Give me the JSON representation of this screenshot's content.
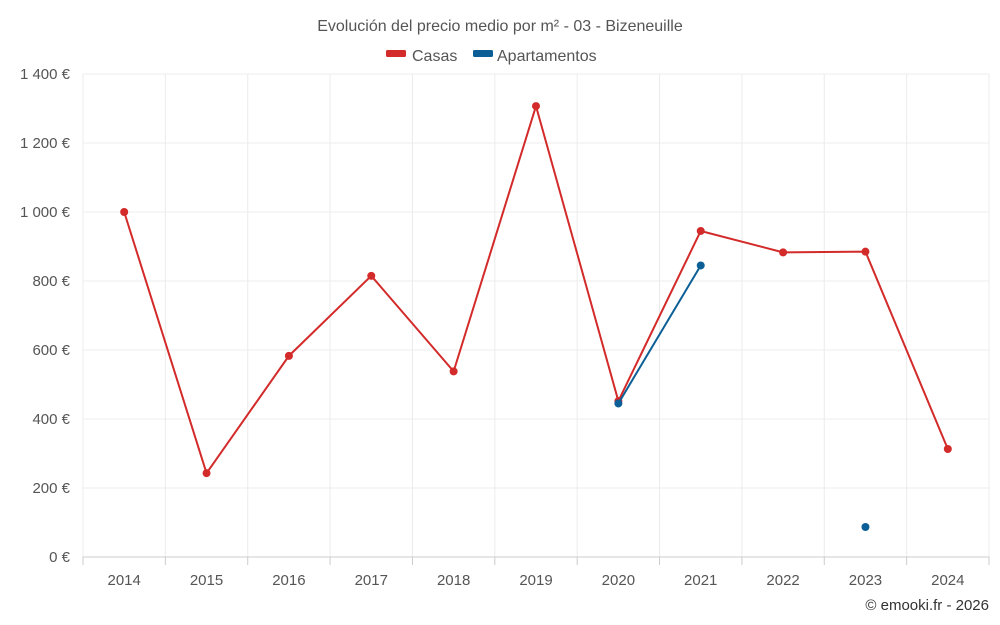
{
  "chart_data": {
    "type": "line",
    "title": "Evolución del precio medio por m² - 03 - Bizeneuille",
    "categories": [
      "2014",
      "2015",
      "2016",
      "2017",
      "2018",
      "2019",
      "2020",
      "2021",
      "2022",
      "2023",
      "2024"
    ],
    "ylim": [
      0,
      1400
    ],
    "yticks": [
      0,
      200,
      400,
      600,
      800,
      1000,
      1200,
      1400
    ],
    "ytick_labels": [
      "0 €",
      "200 €",
      "400 €",
      "600 €",
      "800 €",
      "1 000 €",
      "1 200 €",
      "1 400 €"
    ],
    "xlabel": "",
    "ylabel": "",
    "grid": true,
    "legend_position": "top-center",
    "series": [
      {
        "name": "Casas",
        "color": "#d32a2a",
        "values": [
          1000,
          243,
          583,
          815,
          538,
          1307,
          452,
          945,
          883,
          885,
          313
        ]
      },
      {
        "name": "Apartamentos",
        "color": "#0b5f96",
        "values": [
          null,
          null,
          null,
          null,
          null,
          null,
          445,
          845,
          null,
          87,
          null
        ]
      }
    ],
    "credit": "© emooki.fr - 2026"
  }
}
